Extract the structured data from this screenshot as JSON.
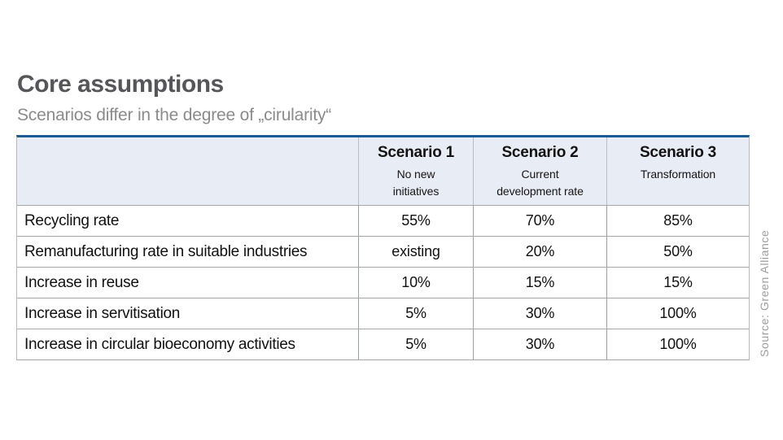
{
  "chart_data": {
    "type": "table",
    "title": "Core assumptions",
    "subtitle": "Scenarios differ in the degree of „cirularity“",
    "source": "Source: Green Alliance",
    "columns": [
      {
        "label": "",
        "sublabel": ""
      },
      {
        "label": "Scenario 1",
        "sublabel": "No new\ninitiatives"
      },
      {
        "label": "Scenario 2",
        "sublabel": "Current\ndevelopment rate"
      },
      {
        "label": "Scenario 3",
        "sublabel": "Transformation"
      }
    ],
    "rows": [
      {
        "label": "Recycling rate",
        "values": [
          "55%",
          "70%",
          "85%"
        ]
      },
      {
        "label": "Remanufacturing rate in suitable industries",
        "values": [
          "existing",
          "20%",
          "50%"
        ]
      },
      {
        "label": "Increase in reuse",
        "values": [
          "10%",
          "15%",
          "15%"
        ]
      },
      {
        "label": "Increase in servitisation",
        "values": [
          "5%",
          "30%",
          "100%"
        ]
      },
      {
        "label": "Increase in circular bioeconomy activities",
        "values": [
          "5%",
          "30%",
          "100%"
        ]
      }
    ],
    "layout": {
      "header_fill": "#e8ecf5",
      "top_rule": "#1c5c95",
      "grid": "on",
      "legend_position": "none"
    }
  },
  "colors": {
    "accent_rule": "#1c5c95",
    "header_bg": "#e8ecf5",
    "title_text": "#56565a",
    "subtitle_text": "#8b8b8b",
    "source_text": "#9c9c9c",
    "cell_text": "#111111",
    "grid_line": "#9aa0a6"
  }
}
